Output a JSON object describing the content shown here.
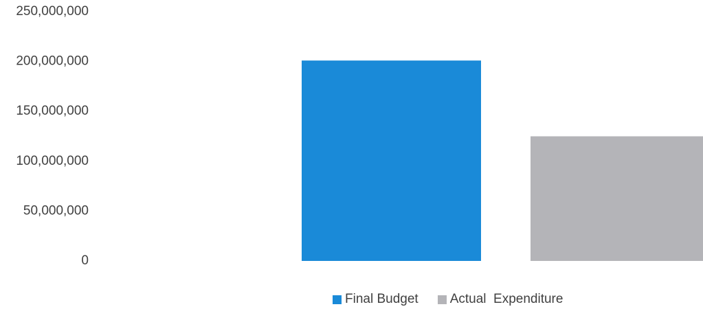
{
  "colors": {
    "budget": "#1a8ad8",
    "actual": "#b4b4b8",
    "text": "#404040"
  },
  "chart_data": {
    "type": "bar",
    "categories": [
      ""
    ],
    "series": [
      {
        "name": "Final Budget",
        "values": [
          201000000
        ]
      },
      {
        "name": "Actual  Expenditure",
        "values": [
          125000000
        ]
      }
    ],
    "y_ticks": [
      "0",
      "50,000,000",
      "100,000,000",
      "150,000,000",
      "200,000,000",
      "250,000,000"
    ],
    "ylim": [
      0,
      250000000
    ],
    "grid": false,
    "legend": "bottom"
  }
}
